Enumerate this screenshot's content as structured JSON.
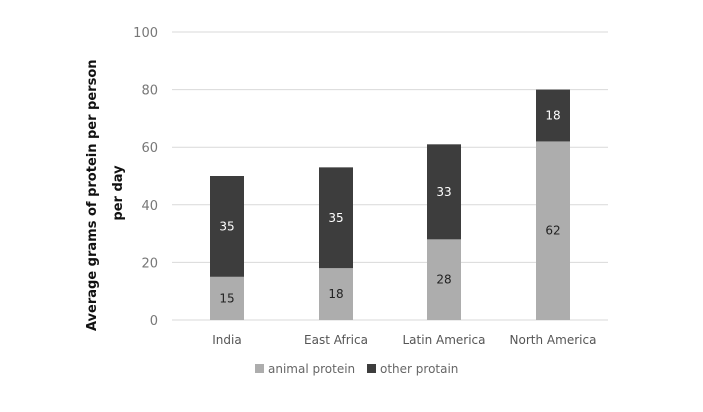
{
  "chart_data": {
    "type": "bar",
    "stacked": true,
    "title": "",
    "xlabel": "",
    "ylabel": "Average grams of protein per person per day",
    "ylabel_lines": [
      "Average grams of protein per person",
      "per day"
    ],
    "ylim": [
      0,
      100
    ],
    "yticks": [
      0,
      20,
      40,
      60,
      80,
      100
    ],
    "grid": true,
    "legend_position": "bottom",
    "categories": [
      "India",
      "East Africa",
      "Latin America",
      "North America"
    ],
    "series": [
      {
        "name": "animal protein",
        "values": [
          15,
          18,
          28,
          62
        ],
        "color": "#adadad",
        "label_color": "#222222"
      },
      {
        "name": "other protain",
        "values": [
          35,
          35,
          33,
          18
        ],
        "color": "#3d3d3d",
        "label_color": "#ffffff"
      }
    ]
  }
}
